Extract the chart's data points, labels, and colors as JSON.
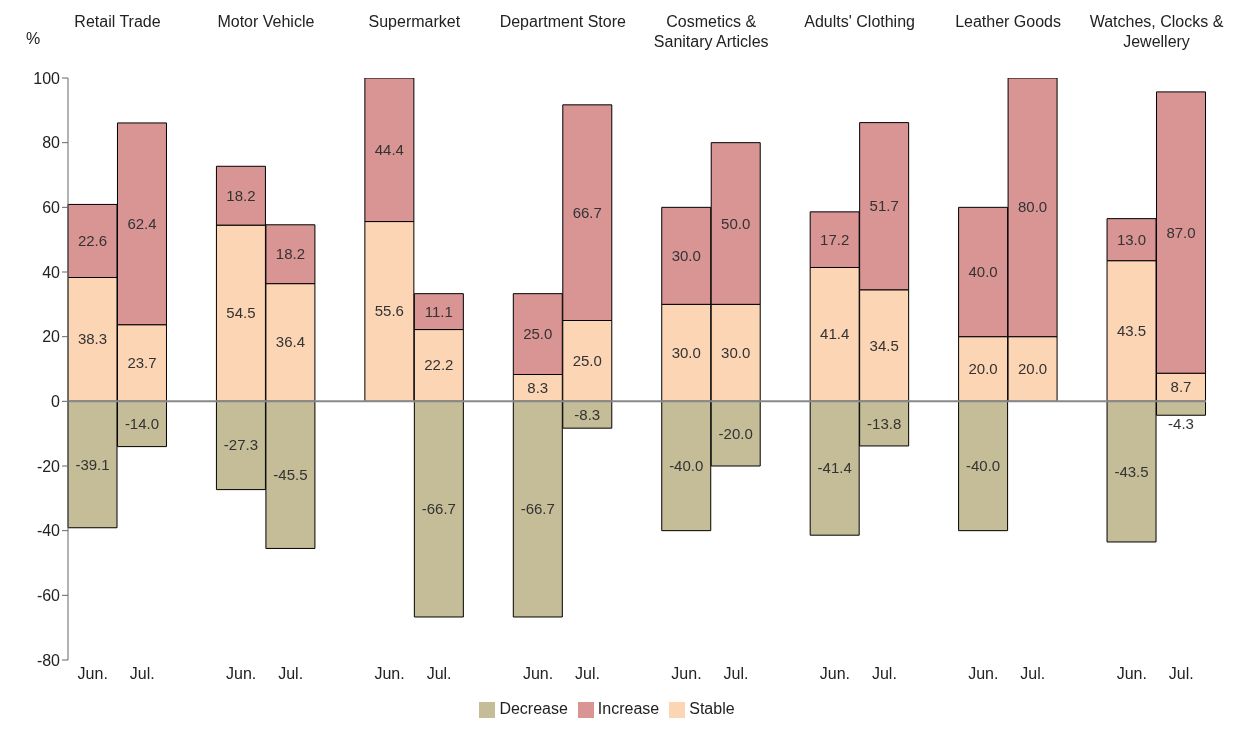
{
  "chart_data": {
    "type": "bar",
    "stacked": true,
    "ylabel": "%",
    "categories": [
      "Jun.",
      "Jul.",
      null,
      "Jun.",
      "Jul.",
      null,
      "Jun.",
      "Jul.",
      null,
      "Jun.",
      "Jul.",
      null,
      "Jun.",
      "Jul.",
      null,
      "Jun.",
      "Jul.",
      null,
      "Jun.",
      "Jul.",
      null,
      "Jun.",
      "Jul."
    ],
    "annotations": [
      "Retail Trade",
      "Motor Vehicle",
      "Supermarket",
      "Department Store",
      "Cosmetics & Sanitary Articles",
      "Adults' Clothing",
      "Leather Goods",
      "Watches, Clocks & Jewellery"
    ],
    "series": [
      {
        "name": "Stable",
        "color": "#fcd5b5",
        "values": [
          38.3,
          23.7,
          null,
          54.5,
          36.4,
          null,
          55.6,
          22.2,
          null,
          8.3,
          25.0,
          null,
          30.0,
          30.0,
          null,
          41.4,
          34.5,
          null,
          20.0,
          20.0,
          null,
          43.5,
          8.7
        ],
        "value_labels": [
          "38.3",
          "23.7",
          null,
          "54.5",
          "36.4",
          null,
          "55.6",
          "22.2",
          null,
          "8.3",
          "25.0",
          null,
          "30.0",
          "30.0",
          null,
          "41.4",
          "34.5",
          null,
          "20.0",
          "20.0",
          null,
          "43.5",
          "8.7"
        ]
      },
      {
        "name": "Increase",
        "color": "#d99594",
        "values": [
          22.6,
          62.4,
          null,
          18.2,
          18.2,
          null,
          44.4,
          11.1,
          null,
          25.0,
          66.7,
          null,
          30.0,
          50.0,
          null,
          17.2,
          51.7,
          null,
          40.0,
          80.0,
          null,
          13.0,
          87.0
        ],
        "value_labels": [
          "22.6",
          "62.4",
          null,
          "18.2",
          "18.2",
          null,
          "44.4",
          "11.1",
          null,
          "25.0",
          "66.7",
          null,
          "30.0",
          "50.0",
          null,
          "17.2",
          "51.7",
          null,
          "40.0",
          "80.0",
          null,
          "13.0",
          "87.0"
        ]
      },
      {
        "name": "Decrease",
        "color": "#c4bd97",
        "values": [
          -39.1,
          -14.0,
          null,
          -27.3,
          -45.5,
          null,
          null,
          -66.7,
          null,
          -66.7,
          -8.3,
          null,
          -40.0,
          -20.0,
          null,
          -41.4,
          -13.8,
          null,
          -40.0,
          null,
          null,
          -43.5,
          -4.3
        ],
        "value_labels": [
          "-39.1",
          "-14.0",
          null,
          "-27.3",
          "-45.5",
          null,
          null,
          "-66.7",
          null,
          "-66.7",
          "-8.3",
          null,
          "-40.0",
          "-20.0",
          null,
          "-41.4",
          "-13.8",
          null,
          "-40.0",
          null,
          null,
          "-43.5",
          "-4.3"
        ]
      }
    ],
    "ylim": [
      -80,
      100
    ],
    "yticks": [
      -80,
      -60,
      -40,
      -20,
      0,
      20,
      40,
      60,
      80,
      100
    ],
    "legend": "bottom"
  }
}
